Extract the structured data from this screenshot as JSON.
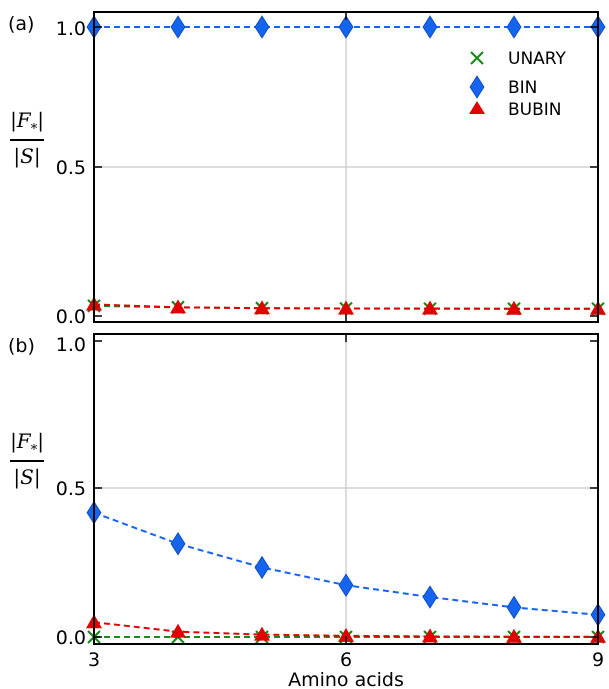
{
  "chart_data": [
    {
      "type": "line",
      "panel_label": "(a)",
      "x": [
        3,
        4,
        5,
        6,
        7,
        8,
        9
      ],
      "xlim": [
        3,
        9
      ],
      "ylim": [
        0,
        1.0
      ],
      "ytick_labels": [
        "0.0",
        "0.5",
        "1.0"
      ],
      "ylabel_numerator": "|F_*|",
      "ylabel_denominator": "|S|",
      "grid": true,
      "legend_position": "top-right",
      "series": [
        {
          "name": "UNARY",
          "marker": "x",
          "color": "#1a8a1a",
          "values": [
            0.035,
            0.03,
            0.027,
            0.026,
            0.025,
            0.025,
            0.025
          ]
        },
        {
          "name": "BIN",
          "marker": "diamond",
          "color": "#1464f0",
          "values": [
            1.0,
            1.0,
            1.0,
            1.0,
            1.0,
            1.0,
            1.0
          ]
        },
        {
          "name": "BUBIN",
          "marker": "triangle",
          "color": "#e00000",
          "values": [
            0.04,
            0.03,
            0.027,
            0.026,
            0.026,
            0.025,
            0.025
          ]
        }
      ]
    },
    {
      "type": "line",
      "panel_label": "(b)",
      "x": [
        3,
        4,
        5,
        6,
        7,
        8,
        9
      ],
      "xlim": [
        3,
        9
      ],
      "ylim": [
        0,
        1.0
      ],
      "xtick_labels": [
        "3",
        "6",
        "9"
      ],
      "ytick_labels": [
        "0.0",
        "0.5",
        "1.0"
      ],
      "xlabel": "Amino acids",
      "ylabel_numerator": "|F_*|",
      "ylabel_denominator": "|S|",
      "grid": true,
      "series": [
        {
          "name": "UNARY",
          "marker": "x",
          "color": "#1a8a1a",
          "values": [
            0.0,
            0.0,
            0.0,
            0.0,
            0.0,
            0.0,
            0.0
          ]
        },
        {
          "name": "BIN",
          "marker": "diamond",
          "color": "#1464f0",
          "values": [
            0.42,
            0.315,
            0.235,
            0.175,
            0.135,
            0.1,
            0.075
          ]
        },
        {
          "name": "BUBIN",
          "marker": "triangle",
          "color": "#e00000",
          "values": [
            0.05,
            0.018,
            0.008,
            0.004,
            0.002,
            0.001,
            0.001
          ]
        }
      ]
    }
  ]
}
